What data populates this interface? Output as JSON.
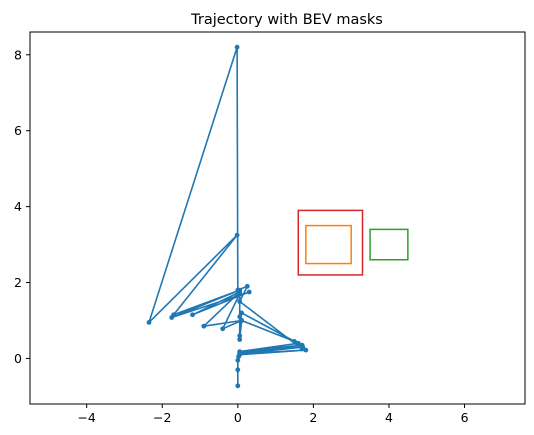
{
  "chart_data": {
    "type": "line",
    "title": "Trajectory with BEV masks",
    "xlabel": "",
    "ylabel": "",
    "xlim": [
      -5.5,
      7.6
    ],
    "ylim": [
      -1.2,
      8.6
    ],
    "xticks": [
      -4,
      -2,
      0,
      2,
      4,
      6
    ],
    "yticks": [
      0,
      2,
      4,
      6,
      8
    ],
    "grid": false,
    "legend": "none",
    "series": [
      {
        "color": "#1f77b4",
        "marker": "circle",
        "points": [
          [
            0.0,
            -0.72
          ],
          [
            0.0,
            -0.3
          ],
          [
            0.0,
            -0.05
          ],
          [
            0.02,
            0.05
          ],
          [
            0.05,
            0.1
          ],
          [
            1.8,
            0.22
          ],
          [
            0.05,
            0.12
          ],
          [
            1.72,
            0.3
          ],
          [
            0.05,
            0.15
          ],
          [
            1.7,
            0.35
          ],
          [
            0.05,
            0.18
          ],
          [
            1.6,
            0.4
          ],
          [
            0.1,
            1.2
          ],
          [
            1.5,
            0.45
          ],
          [
            0.1,
            1.0
          ],
          [
            0.05,
            0.5
          ],
          [
            0.05,
            1.1
          ],
          [
            0.05,
            0.6
          ],
          [
            0.05,
            1.7
          ],
          [
            -0.4,
            0.78
          ],
          [
            0.1,
            1.0
          ],
          [
            -0.9,
            0.85
          ],
          [
            0.05,
            1.75
          ],
          [
            -1.2,
            1.15
          ],
          [
            0.3,
            1.75
          ],
          [
            -1.75,
            1.08
          ],
          [
            0.05,
            1.8
          ],
          [
            -1.7,
            1.15
          ],
          [
            -0.02,
            3.25
          ],
          [
            -2.35,
            0.95
          ],
          [
            -0.02,
            8.2
          ],
          [
            0.0,
            1.8
          ],
          [
            0.25,
            1.9
          ],
          [
            0.05,
            1.5
          ],
          [
            1.7,
            0.25
          ]
        ]
      }
    ],
    "shapes": [
      {
        "type": "rect",
        "x": [
          1.6,
          3.3
        ],
        "y": [
          2.2,
          3.9
        ],
        "color": "#d62728"
      },
      {
        "type": "rect",
        "x": [
          1.8,
          3.0
        ],
        "y": [
          2.5,
          3.5
        ],
        "color": "#ff7f0e"
      },
      {
        "type": "rect",
        "x": [
          3.5,
          4.5
        ],
        "y": [
          2.6,
          3.4
        ],
        "color": "#2ca02c"
      }
    ]
  }
}
